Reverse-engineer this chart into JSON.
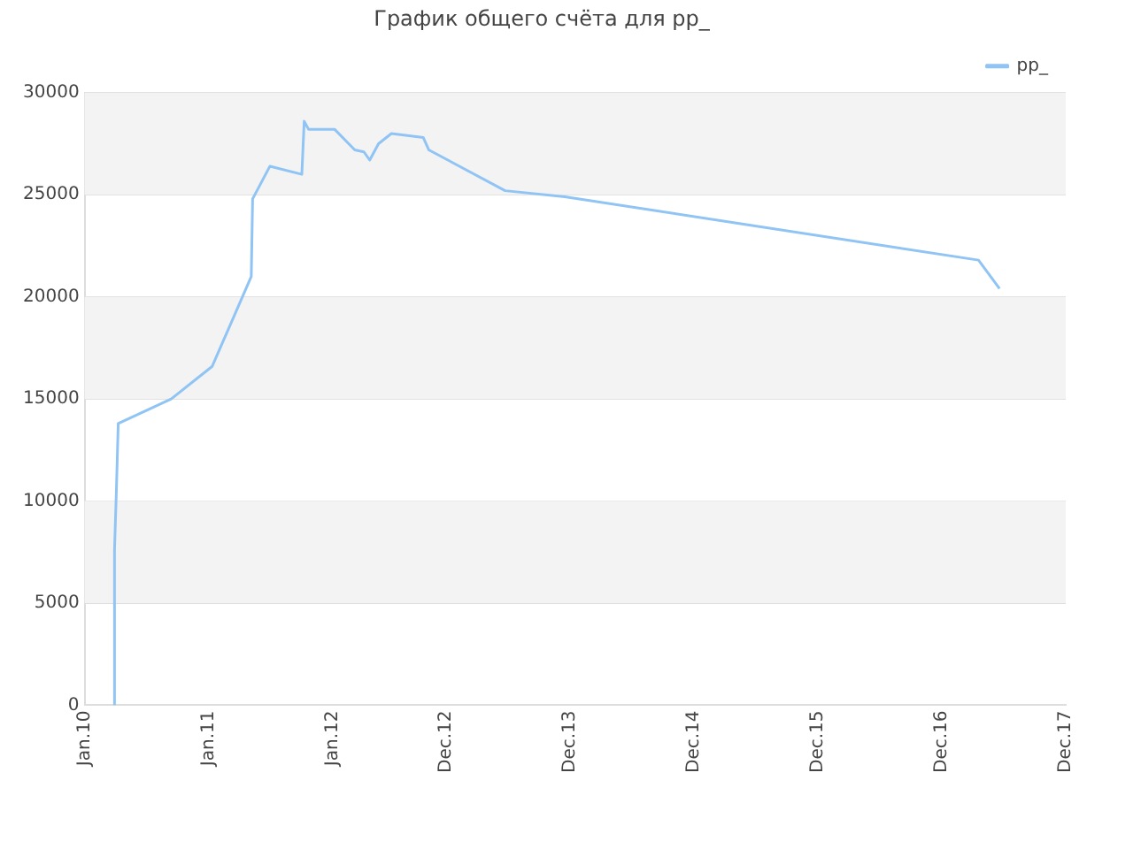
{
  "chart_data": {
    "type": "line",
    "title": "График общего счёта для pp_",
    "xlim": [
      "2010-01-01",
      "2017-12-01"
    ],
    "xticks": [
      {
        "value": "2010-01-01",
        "label": "Jan.10"
      },
      {
        "value": "2011-01-01",
        "label": "Jan.11"
      },
      {
        "value": "2012-01-01",
        "label": "Jan.12"
      },
      {
        "value": "2012-12-01",
        "label": "Dec.12"
      },
      {
        "value": "2013-12-01",
        "label": "Dec.13"
      },
      {
        "value": "2014-12-01",
        "label": "Dec.14"
      },
      {
        "value": "2015-12-01",
        "label": "Dec.15"
      },
      {
        "value": "2016-12-01",
        "label": "Dec.16"
      },
      {
        "value": "2017-12-01",
        "label": "Dec.17"
      }
    ],
    "ylim": [
      0,
      30000
    ],
    "yticks": [
      0,
      5000,
      10000,
      15000,
      20000,
      25000,
      30000
    ],
    "grid": "y",
    "legend": "top right",
    "marker": "none",
    "line_style": "solid",
    "series": [
      {
        "name": "pp_",
        "color": "#90c4f4",
        "x": [
          "2010-03-30",
          "2010-03-30",
          "2010-04-04",
          "2010-04-10",
          "2010-09-13",
          "2011-01-12",
          "2011-05-07",
          "2011-05-11",
          "2011-07-01",
          "2011-10-03",
          "2011-10-10",
          "2011-10-23",
          "2012-01-08",
          "2012-03-07",
          "2012-04-03",
          "2012-04-20",
          "2012-05-16",
          "2012-06-23",
          "2012-09-25",
          "2012-10-11",
          "2013-05-24",
          "2013-11-16",
          "2017-03-19",
          "2017-05-20"
        ],
        "values": [
          0,
          7600,
          10200,
          13800,
          15000,
          16600,
          21000,
          24800,
          26400,
          26000,
          28600,
          28200,
          28200,
          27200,
          27100,
          26700,
          27500,
          28000,
          27800,
          27200,
          25200,
          24900,
          21800,
          20400
        ]
      }
    ]
  }
}
